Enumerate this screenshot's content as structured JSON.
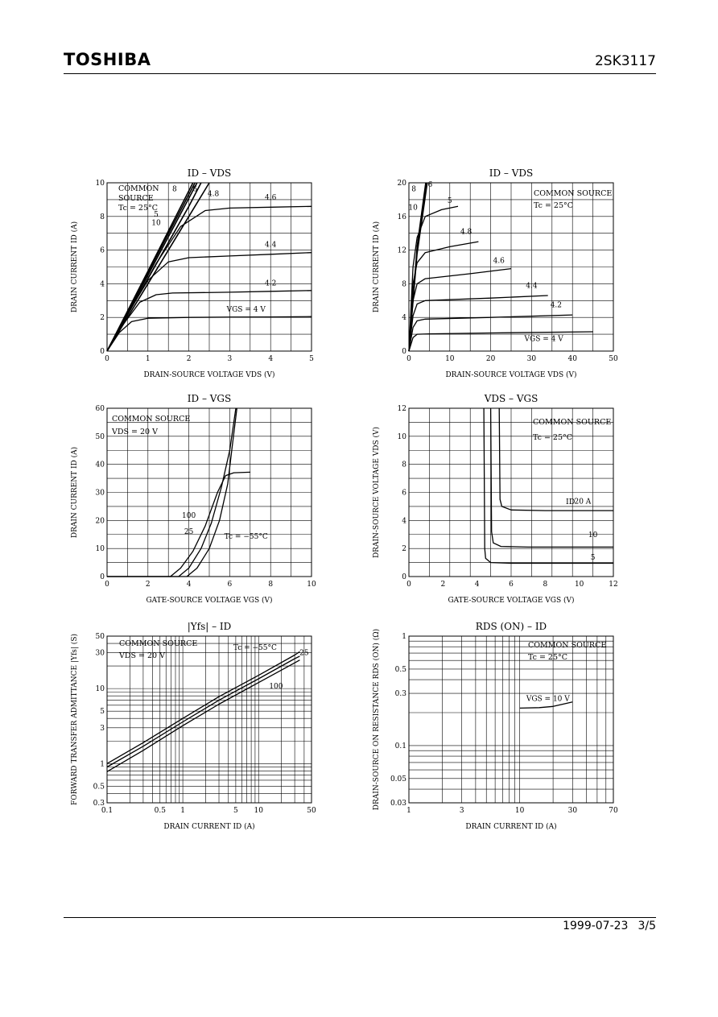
{
  "header": {
    "logo": "TOSHIBA",
    "part_number": "2SK3117"
  },
  "footer": {
    "date": "1999-07-23",
    "page": "3/5"
  },
  "chart_data": [
    {
      "id": "c1",
      "type": "line",
      "title": "ID – VDS",
      "xlabel": "DRAIN-SOURCE VOLTAGE  VDS  (V)",
      "ylabel": "DRAIN CURRENT  ID  (A)",
      "xlim": [
        0,
        5
      ],
      "ylim": [
        0,
        10
      ],
      "xticks": [
        "0",
        "1",
        "2",
        "3",
        "4",
        "5"
      ],
      "yticks": [
        "0",
        "2",
        "4",
        "6",
        "8",
        "10"
      ],
      "annotations": [
        "COMMON",
        "SOURCE",
        "Tc = 25°C"
      ],
      "series": [
        {
          "name": "VGS = 4 V",
          "points": [
            [
              0,
              0
            ],
            [
              0.3,
              1.1
            ],
            [
              0.6,
              1.75
            ],
            [
              1,
              1.95
            ],
            [
              2,
              2.0
            ],
            [
              3,
              2.02
            ],
            [
              4,
              2.03
            ],
            [
              5,
              2.05
            ]
          ]
        },
        {
          "name": "4.2",
          "points": [
            [
              0,
              0
            ],
            [
              0.4,
              1.6
            ],
            [
              0.8,
              2.9
            ],
            [
              1.2,
              3.35
            ],
            [
              1.6,
              3.45
            ],
            [
              3,
              3.5
            ],
            [
              4,
              3.55
            ],
            [
              5,
              3.6
            ]
          ]
        },
        {
          "name": "4.4",
          "points": [
            [
              0,
              0
            ],
            [
              0.5,
              2.2
            ],
            [
              1,
              4.2
            ],
            [
              1.5,
              5.3
            ],
            [
              2,
              5.55
            ],
            [
              3,
              5.65
            ],
            [
              4,
              5.75
            ],
            [
              5,
              5.85
            ]
          ]
        },
        {
          "name": "4.6",
          "points": [
            [
              0,
              0
            ],
            [
              0.6,
              2.6
            ],
            [
              1.2,
              5.2
            ],
            [
              1.8,
              7.4
            ],
            [
              2.4,
              8.35
            ],
            [
              3,
              8.5
            ],
            [
              4,
              8.55
            ],
            [
              5,
              8.6
            ]
          ]
        },
        {
          "name": "4.8",
          "points": [
            [
              0,
              0
            ],
            [
              1,
              4.0
            ],
            [
              2,
              8.0
            ],
            [
              2.5,
              10
            ]
          ]
        },
        {
          "name": "5",
          "points": [
            [
              0,
              0
            ],
            [
              1,
              4.3
            ],
            [
              2,
              8.6
            ],
            [
              2.3,
              10
            ]
          ]
        },
        {
          "name": "6",
          "points": [
            [
              0,
              0
            ],
            [
              1,
              4.5
            ],
            [
              2.2,
              10
            ]
          ]
        },
        {
          "name": "8",
          "points": [
            [
              0,
              0
            ],
            [
              1,
              4.65
            ],
            [
              2.15,
              10
            ]
          ]
        },
        {
          "name": "10",
          "points": [
            [
              0,
              0
            ],
            [
              1,
              4.75
            ],
            [
              2.1,
              10
            ]
          ]
        }
      ]
    },
    {
      "id": "c2",
      "type": "line",
      "title": "ID – VDS",
      "xlabel": "DRAIN-SOURCE VOLTAGE  VDS  (V)",
      "ylabel": "DRAIN CURRENT  ID  (A)",
      "xlim": [
        0,
        50
      ],
      "ylim": [
        0,
        20
      ],
      "xticks": [
        "0",
        "10",
        "20",
        "30",
        "40",
        "50"
      ],
      "yticks": [
        "0",
        "4",
        "8",
        "12",
        "16",
        "20"
      ],
      "annotations": [
        "COMMON SOURCE",
        "Tc = 25°C"
      ],
      "series": [
        {
          "name": "VGS = 4 V",
          "points": [
            [
              0,
              0
            ],
            [
              1,
              1.6
            ],
            [
              2,
              2.0
            ],
            [
              5,
              2.05
            ],
            [
              20,
              2.15
            ],
            [
              45,
              2.3
            ]
          ]
        },
        {
          "name": "4.2",
          "points": [
            [
              0,
              0
            ],
            [
              1,
              2.8
            ],
            [
              2,
              3.6
            ],
            [
              4,
              3.8
            ],
            [
              20,
              4.0
            ],
            [
              40,
              4.3
            ]
          ]
        },
        {
          "name": "4.4",
          "points": [
            [
              0,
              0
            ],
            [
              1,
              4.2
            ],
            [
              2,
              5.6
            ],
            [
              4,
              6.0
            ],
            [
              20,
              6.3
            ],
            [
              34,
              6.6
            ]
          ]
        },
        {
          "name": "4.6",
          "points": [
            [
              0,
              0
            ],
            [
              1,
              6.0
            ],
            [
              2,
              8.0
            ],
            [
              4,
              8.6
            ],
            [
              15,
              9.2
            ],
            [
              25,
              9.8
            ]
          ]
        },
        {
          "name": "4.8",
          "points": [
            [
              0,
              0
            ],
            [
              1,
              8.0
            ],
            [
              2,
              10.5
            ],
            [
              4,
              11.7
            ],
            [
              10,
              12.4
            ],
            [
              17,
              13.0
            ]
          ]
        },
        {
          "name": "5",
          "points": [
            [
              0,
              0
            ],
            [
              1,
              10.0
            ],
            [
              2,
              13.5
            ],
            [
              4,
              16.0
            ],
            [
              8,
              16.8
            ],
            [
              12,
              17.2
            ]
          ]
        },
        {
          "name": "6",
          "points": [
            [
              0,
              0
            ],
            [
              2,
              11.5
            ],
            [
              4.5,
              20
            ]
          ]
        },
        {
          "name": "8",
          "points": [
            [
              0,
              0
            ],
            [
              2,
              12.0
            ],
            [
              4.3,
              20
            ]
          ]
        },
        {
          "name": "10",
          "points": [
            [
              0,
              0
            ],
            [
              2,
              12.5
            ],
            [
              4.1,
              20
            ]
          ]
        }
      ]
    },
    {
      "id": "c3",
      "type": "line",
      "title": "ID – VGS",
      "xlabel": "GATE-SOURCE VOLTAGE  VGS  (V)",
      "ylabel": "DRAIN CURRENT  ID  (A)",
      "xlim": [
        0,
        10
      ],
      "ylim": [
        0,
        60
      ],
      "xticks": [
        "0",
        "2",
        "4",
        "6",
        "8",
        "10"
      ],
      "yticks": [
        "0",
        "10",
        "20",
        "30",
        "40",
        "50",
        "60"
      ],
      "annotations": [
        "COMMON SOURCE",
        "VDS = 20 V"
      ],
      "series": [
        {
          "name": "100",
          "points": [
            [
              0,
              0
            ],
            [
              3.1,
              0
            ],
            [
              3.6,
              3
            ],
            [
              4.2,
              9
            ],
            [
              4.8,
              18
            ],
            [
              5.4,
              30
            ],
            [
              5.8,
              36
            ],
            [
              6.2,
              37
            ],
            [
              7,
              37.2
            ]
          ]
        },
        {
          "name": "25",
          "points": [
            [
              0,
              0
            ],
            [
              3.5,
              0
            ],
            [
              4.0,
              3
            ],
            [
              4.6,
              10
            ],
            [
              5.1,
              19
            ],
            [
              5.6,
              32
            ],
            [
              6.0,
              45
            ],
            [
              6.3,
              60
            ]
          ]
        },
        {
          "name": "Tc = −55°C",
          "points": [
            [
              0,
              0
            ],
            [
              3.9,
              0
            ],
            [
              4.4,
              3
            ],
            [
              5.0,
              10
            ],
            [
              5.5,
              20
            ],
            [
              5.9,
              33
            ],
            [
              6.1,
              45
            ],
            [
              6.35,
              60
            ]
          ]
        }
      ]
    },
    {
      "id": "c4",
      "type": "line",
      "title": "VDS – VGS",
      "xlabel": "GATE-SOURCE VOLTAGE  VGS  (V)",
      "ylabel": "DRAIN-SOURCE VOLTAGE  VDS  (V)",
      "xlim": [
        0,
        12
      ],
      "ylim": [
        0,
        12
      ],
      "xticks": [
        "0",
        "2",
        "4",
        "6",
        "8",
        "10",
        "12"
      ],
      "yticks": [
        "0",
        "2",
        "4",
        "6",
        "8",
        "10",
        "12"
      ],
      "annotations": [
        "COMMON SOURCE",
        "Tc = 25°C",
        "ID"
      ],
      "series": [
        {
          "name": "5",
          "points": [
            [
              4.4,
              12
            ],
            [
              4.45,
              2
            ],
            [
              4.5,
              1.3
            ],
            [
              4.8,
              1.0
            ],
            [
              6,
              0.95
            ],
            [
              12,
              0.95
            ]
          ]
        },
        {
          "name": "10",
          "points": [
            [
              4.8,
              12
            ],
            [
              4.85,
              3.2
            ],
            [
              4.95,
              2.4
            ],
            [
              5.4,
              2.15
            ],
            [
              7,
              2.1
            ],
            [
              12,
              2.1
            ]
          ]
        },
        {
          "name": "20 A",
          "points": [
            [
              5.3,
              12
            ],
            [
              5.35,
              5.5
            ],
            [
              5.45,
              5.0
            ],
            [
              6,
              4.75
            ],
            [
              8,
              4.7
            ],
            [
              12,
              4.7
            ]
          ]
        }
      ]
    },
    {
      "id": "c5",
      "type": "line",
      "title": "|Yfs| – ID",
      "xlabel": "DRAIN CURRENT  ID  (A)",
      "ylabel": "FORWARD TRANSFER ADMITTANCE  |Yfs|  (S)",
      "xscale": "log",
      "yscale": "log",
      "xlim": [
        0.1,
        50
      ],
      "ylim": [
        0.3,
        50
      ],
      "xticks": [
        "0.1",
        "0.5",
        "1",
        "5",
        "10",
        "50"
      ],
      "yticks": [
        "0.3",
        "0.5",
        "1",
        "3",
        "5",
        "10",
        "30",
        "50"
      ],
      "annotations": [
        "COMMON SOURCE",
        "VDS = 20 V"
      ],
      "series": [
        {
          "name": "Tc = −55°C",
          "points": [
            [
              0.1,
              1.0
            ],
            [
              0.3,
              1.9
            ],
            [
              1,
              4.0
            ],
            [
              3,
              7.8
            ],
            [
              10,
              15
            ],
            [
              30,
              28
            ],
            [
              35,
              31
            ]
          ]
        },
        {
          "name": "25",
          "points": [
            [
              0.1,
              0.9
            ],
            [
              0.3,
              1.7
            ],
            [
              1,
              3.6
            ],
            [
              3,
              7.0
            ],
            [
              10,
              13.5
            ],
            [
              30,
              25
            ],
            [
              35,
              27
            ]
          ]
        },
        {
          "name": "100",
          "points": [
            [
              0.1,
              0.78
            ],
            [
              0.3,
              1.5
            ],
            [
              1,
              3.2
            ],
            [
              3,
              6.2
            ],
            [
              10,
              12
            ],
            [
              30,
              22
            ],
            [
              35,
              24
            ]
          ]
        }
      ]
    },
    {
      "id": "c6",
      "type": "line",
      "title": "RDS (ON) – ID",
      "xlabel": "DRAIN CURRENT  ID  (A)",
      "ylabel": "DRAIN-SOURCE ON RESISTANCE  RDS (ON)  (Ω)",
      "xscale": "log",
      "yscale": "log",
      "xlim": [
        1,
        70
      ],
      "ylim": [
        0.03,
        1
      ],
      "xticks": [
        "1",
        "3",
        "10",
        "30",
        "70"
      ],
      "yticks": [
        "0.03",
        "0.05",
        "0.1",
        "0.3",
        "0.5",
        "1"
      ],
      "annotations": [
        "COMMON SOURCE",
        "Tc = 25°C"
      ],
      "series": [
        {
          "name": "VGS = 10 V",
          "points": [
            [
              10,
              0.22
            ],
            [
              15,
              0.222
            ],
            [
              20,
              0.228
            ],
            [
              25,
              0.24
            ],
            [
              30,
              0.25
            ]
          ]
        }
      ]
    }
  ]
}
